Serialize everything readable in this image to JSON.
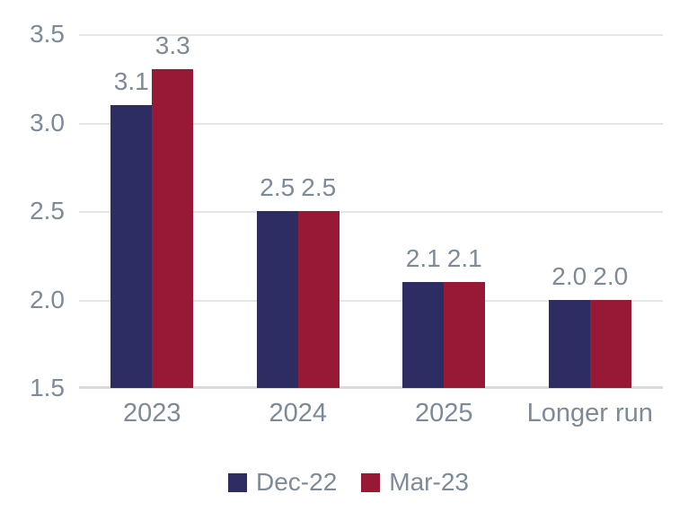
{
  "chart_data": {
    "type": "bar",
    "categories": [
      "2023",
      "2024",
      "2025",
      "Longer run"
    ],
    "series": [
      {
        "name": "Dec-22",
        "color": "#2d2c63",
        "values": [
          3.1,
          2.5,
          2.1,
          2.0
        ]
      },
      {
        "name": "Mar-23",
        "color": "#971935",
        "values": [
          3.3,
          2.5,
          2.1,
          2.0
        ]
      }
    ],
    "data_labels": [
      [
        "3.1",
        "2.5",
        "2.1",
        "2.0"
      ],
      [
        "3.3",
        "2.5",
        "2.1",
        "2.0"
      ]
    ],
    "ylim": [
      1.5,
      3.5
    ],
    "yticks": [
      "3.5",
      "3.0",
      "2.5",
      "2.0",
      "1.5"
    ],
    "grid": true,
    "legend_position": "bottom"
  },
  "legend": {
    "items": [
      {
        "label": "Dec-22",
        "color": "#2d2c63"
      },
      {
        "label": "Mar-23",
        "color": "#971935"
      }
    ]
  },
  "colors": {
    "background": "#ffffff",
    "axis_text": "#7d8a97",
    "gridline": "#e3e6e9",
    "baseline": "#d8dbde",
    "series_dec22": "#2d2c63",
    "series_mar23": "#971935"
  }
}
